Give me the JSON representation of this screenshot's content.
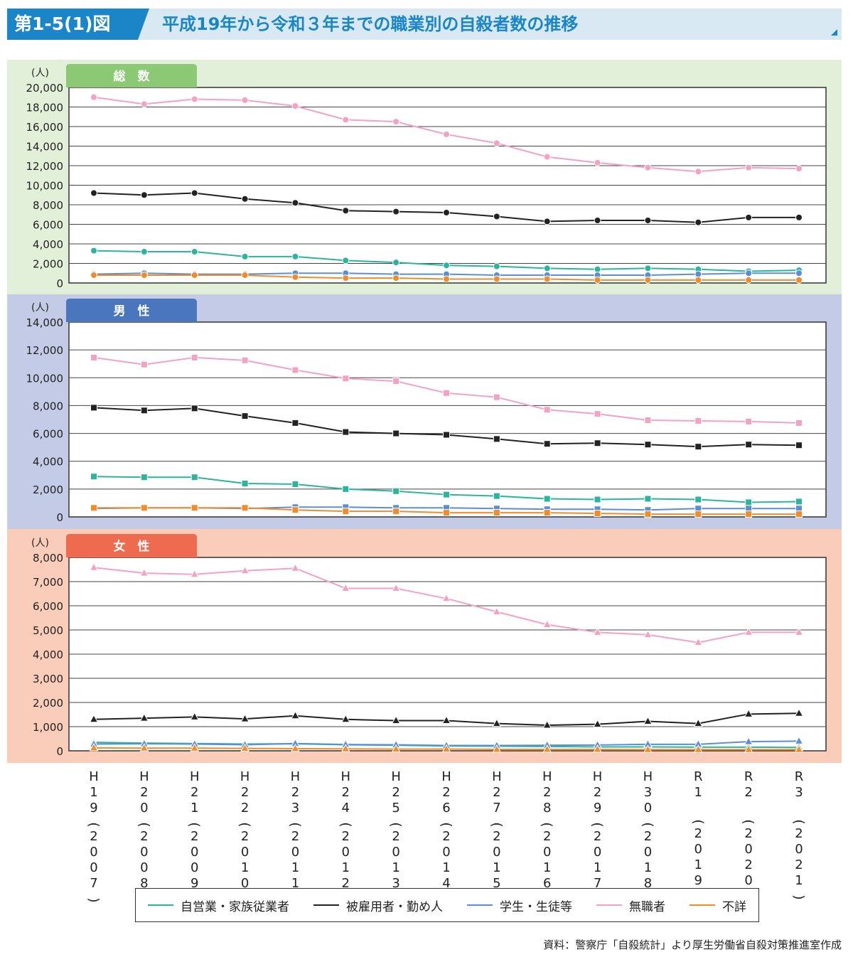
{
  "header": {
    "figure_label": "第1-5(1)図",
    "title": "平成19年から令和３年までの職業別の自殺者数の推移"
  },
  "colors": {
    "header_bg": "#d8e9f4",
    "header_accent": "#1a86c8",
    "self_employed": "#2ab59c",
    "employee": "#222222",
    "student": "#5b8fd4",
    "unemployed": "#f3a2c4",
    "unknown": "#f08c2a"
  },
  "source": "資料：警察庁「自殺統計」より厚生労働省自殺対策推進室作成",
  "x_tick_labels": [
    "H19(2007)",
    "H20(2008)",
    "H21(2009)",
    "H22(2010)",
    "H23(2011)",
    "H24(2012)",
    "H25(2013)",
    "H26(2014)",
    "H27(2015)",
    "H28(2016)",
    "H29(2017)",
    "H30(2018)",
    "R1 (2019)",
    "R2 (2020)",
    "R3 (2021)"
  ],
  "legend": [
    {
      "name": "自営業・家族従業者",
      "color": "#2ab59c"
    },
    {
      "name": "被雇用者・勤め人",
      "color": "#222222"
    },
    {
      "name": "学生・生徒等",
      "color": "#5b8fd4"
    },
    {
      "name": "無職者",
      "color": "#f3a2c4"
    },
    {
      "name": "不詳",
      "color": "#f08c2a"
    }
  ],
  "chart_data": [
    {
      "type": "line",
      "title": "総　数",
      "title_color": "#8cc975",
      "panel_bg": "#e2f0d9",
      "unit": "(人)",
      "marker": "circle",
      "ylim": [
        0,
        20000
      ],
      "yticks": [
        0,
        2000,
        4000,
        6000,
        8000,
        10000,
        12000,
        14000,
        16000,
        18000,
        20000
      ],
      "grid": true,
      "series": [
        {
          "name": "自営業・家族従業者",
          "color": "#2ab59c",
          "values": [
            3300,
            3200,
            3200,
            2700,
            2700,
            2300,
            2100,
            1800,
            1700,
            1500,
            1400,
            1500,
            1400,
            1200,
            1300
          ]
        },
        {
          "name": "被雇用者・勤め人",
          "color": "#222222",
          "values": [
            9200,
            9000,
            9200,
            8600,
            8200,
            7400,
            7300,
            7200,
            6800,
            6300,
            6400,
            6400,
            6200,
            6700,
            6700
          ]
        },
        {
          "name": "学生・生徒等",
          "color": "#5b8fd4",
          "values": [
            900,
            1000,
            900,
            900,
            1000,
            1000,
            900,
            900,
            800,
            800,
            800,
            800,
            900,
            1000,
            1000
          ]
        },
        {
          "name": "無職者",
          "color": "#f3a2c4",
          "values": [
            19000,
            18300,
            18800,
            18700,
            18100,
            16700,
            16500,
            15200,
            14300,
            12900,
            12300,
            11800,
            11400,
            11800,
            11700
          ]
        },
        {
          "name": "不詳",
          "color": "#f08c2a",
          "values": [
            800,
            800,
            800,
            800,
            600,
            500,
            500,
            400,
            400,
            400,
            300,
            300,
            300,
            300,
            300
          ]
        }
      ]
    },
    {
      "type": "line",
      "title": "男　性",
      "title_color": "#4a76bd",
      "panel_bg": "#c3cbe7",
      "unit": "(人)",
      "marker": "square",
      "ylim": [
        0,
        14000
      ],
      "yticks": [
        0,
        2000,
        4000,
        6000,
        8000,
        10000,
        12000,
        14000
      ],
      "grid": true,
      "series": [
        {
          "name": "自営業・家族従業者",
          "color": "#2ab59c",
          "values": [
            2900,
            2850,
            2850,
            2400,
            2350,
            2000,
            1850,
            1600,
            1500,
            1300,
            1250,
            1300,
            1250,
            1050,
            1100
          ]
        },
        {
          "name": "被雇用者・勤め人",
          "color": "#222222",
          "values": [
            7850,
            7650,
            7800,
            7250,
            6750,
            6100,
            6000,
            5900,
            5600,
            5250,
            5300,
            5200,
            5050,
            5200,
            5150
          ]
        },
        {
          "name": "学生・生徒等",
          "color": "#5b8fd4",
          "values": [
            600,
            650,
            650,
            600,
            700,
            700,
            650,
            650,
            600,
            550,
            550,
            500,
            600,
            600,
            600
          ]
        },
        {
          "name": "無職者",
          "color": "#f3a2c4",
          "values": [
            11450,
            10950,
            11450,
            11250,
            10550,
            9950,
            9750,
            8900,
            8600,
            7700,
            7400,
            6950,
            6900,
            6850,
            6750
          ]
        },
        {
          "name": "不詳",
          "color": "#f08c2a",
          "values": [
            650,
            650,
            650,
            650,
            500,
            400,
            400,
            300,
            300,
            300,
            250,
            200,
            200,
            200,
            200
          ]
        }
      ]
    },
    {
      "type": "line",
      "title": "女　性",
      "title_color": "#ee6b50",
      "panel_bg": "#f9cdb9",
      "unit": "(人)",
      "marker": "triangle",
      "ylim": [
        0,
        8000
      ],
      "yticks": [
        0,
        1000,
        2000,
        3000,
        4000,
        5000,
        6000,
        7000,
        8000
      ],
      "grid": true,
      "series": [
        {
          "name": "自営業・家族従業者",
          "color": "#2ab59c",
          "values": [
            350,
            320,
            300,
            280,
            290,
            250,
            230,
            200,
            190,
            180,
            160,
            160,
            150,
            150,
            140
          ]
        },
        {
          "name": "被雇用者・勤め人",
          "color": "#222222",
          "values": [
            1300,
            1350,
            1400,
            1320,
            1450,
            1300,
            1250,
            1250,
            1130,
            1060,
            1100,
            1220,
            1130,
            1520,
            1550
          ]
        },
        {
          "name": "学生・生徒等",
          "color": "#5b8fd4",
          "values": [
            280,
            290,
            280,
            250,
            300,
            260,
            250,
            220,
            220,
            230,
            240,
            270,
            270,
            380,
            400
          ]
        },
        {
          "name": "無職者",
          "color": "#f3a2c4",
          "values": [
            7580,
            7350,
            7300,
            7450,
            7550,
            6720,
            6720,
            6300,
            5750,
            5220,
            4900,
            4800,
            4480,
            4900,
            4900
          ]
        },
        {
          "name": "不詳",
          "color": "#f08c2a",
          "values": [
            120,
            110,
            110,
            100,
            90,
            80,
            70,
            70,
            60,
            60,
            60,
            50,
            50,
            50,
            50
          ]
        }
      ]
    }
  ]
}
